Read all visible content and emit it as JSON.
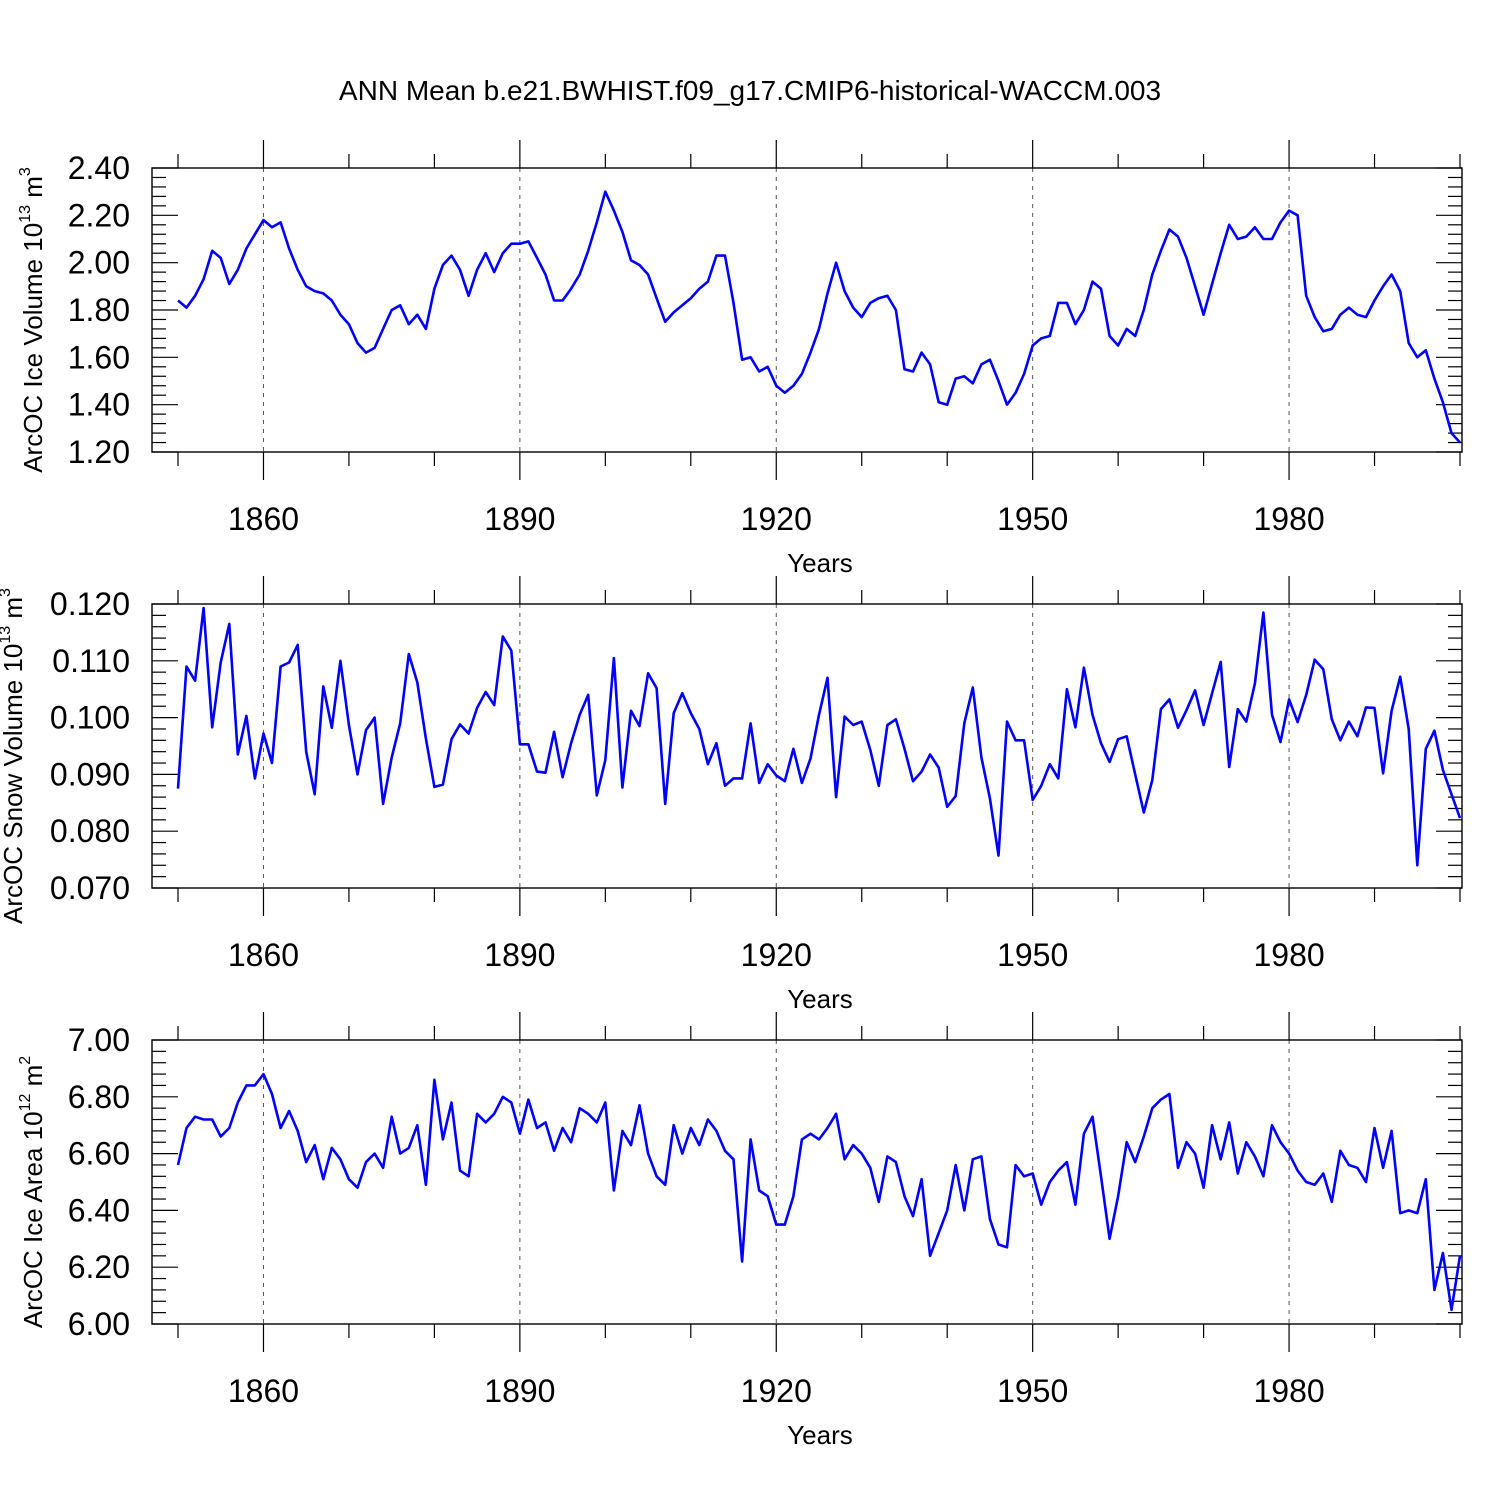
{
  "title": "ANN Mean b.e21.BWHIST.f09_g17.CMIP6-historical-WACCM.003",
  "colors": {
    "series": "#0000ff",
    "axis": "#000000"
  },
  "chart_data": [
    {
      "type": "line",
      "name": "ice-volume",
      "title": "ANN Mean b.e21.BWHIST.f09_g17.CMIP6-historical-WACCM.003",
      "ylabel": {
        "text": "ArcOC Ice Volume 10",
        "exp1": "13",
        "unit": " m",
        "exp2": "3"
      },
      "xlabel": "Years",
      "xlim": [
        1850,
        2000
      ],
      "ylim": [
        1.2,
        2.4
      ],
      "x_ticks": [
        1860,
        1890,
        1920,
        1950,
        1980
      ],
      "x_tick_labels": [
        "1860",
        "1890",
        "1920",
        "1950",
        "1980"
      ],
      "y_ticks": [
        1.2,
        1.4,
        1.6,
        1.8,
        2.0,
        2.2,
        2.4
      ],
      "y_tick_labels": [
        "1.20",
        "1.40",
        "1.60",
        "1.80",
        "2.00",
        "2.20",
        "2.40"
      ],
      "x_start": 1850,
      "values": [
        1.84,
        1.81,
        1.86,
        1.93,
        2.05,
        2.02,
        1.91,
        1.97,
        2.06,
        2.12,
        2.18,
        2.15,
        2.17,
        2.06,
        1.97,
        1.9,
        1.88,
        1.87,
        1.84,
        1.78,
        1.74,
        1.66,
        1.62,
        1.64,
        1.72,
        1.8,
        1.82,
        1.74,
        1.78,
        1.72,
        1.89,
        1.99,
        2.03,
        1.97,
        1.86,
        1.97,
        2.04,
        1.96,
        2.04,
        2.08,
        2.08,
        2.09,
        2.02,
        1.95,
        1.84,
        1.84,
        1.89,
        1.95,
        2.05,
        2.17,
        2.3,
        2.22,
        2.13,
        2.01,
        1.99,
        1.95,
        1.85,
        1.75,
        1.79,
        1.82,
        1.85,
        1.89,
        1.92,
        2.03,
        2.03,
        1.83,
        1.59,
        1.6,
        1.54,
        1.56,
        1.48,
        1.45,
        1.48,
        1.53,
        1.62,
        1.72,
        1.87,
        2.0,
        1.88,
        1.81,
        1.77,
        1.83,
        1.85,
        1.86,
        1.8,
        1.55,
        1.54,
        1.62,
        1.57,
        1.41,
        1.4,
        1.51,
        1.52,
        1.49,
        1.57,
        1.59,
        1.5,
        1.4,
        1.45,
        1.53,
        1.65,
        1.68,
        1.69,
        1.83,
        1.83,
        1.74,
        1.8,
        1.92,
        1.89,
        1.69,
        1.65,
        1.72,
        1.69,
        1.8,
        1.95,
        2.05,
        2.14,
        2.11,
        2.02,
        1.9,
        1.78,
        1.91,
        2.04,
        2.16,
        2.1,
        2.11,
        2.15,
        2.1,
        2.1,
        2.17,
        2.22,
        2.2,
        1.86,
        1.77,
        1.71,
        1.72,
        1.78,
        1.81,
        1.78,
        1.77,
        1.84,
        1.9,
        1.95,
        1.88,
        1.66,
        1.6,
        1.63,
        1.51,
        1.41,
        1.28,
        1.24
      ]
    },
    {
      "type": "line",
      "name": "snow-volume",
      "ylabel": {
        "text": "ArcOC Snow Volume 10",
        "exp1": "13",
        "unit": " m",
        "exp2": "3"
      },
      "xlabel": "Years",
      "xlim": [
        1850,
        2000
      ],
      "ylim": [
        0.07,
        0.12
      ],
      "x_ticks": [
        1860,
        1890,
        1920,
        1950,
        1980
      ],
      "x_tick_labels": [
        "1860",
        "1890",
        "1920",
        "1950",
        "1980"
      ],
      "y_ticks": [
        0.07,
        0.08,
        0.09,
        0.1,
        0.11,
        0.12
      ],
      "y_tick_labels": [
        "0.070",
        "0.080",
        "0.090",
        "0.100",
        "0.110",
        "0.120"
      ],
      "x_start": 1850,
      "values": [
        0.0875,
        0.109,
        0.1065,
        0.1193,
        0.0983,
        0.1097,
        0.1165,
        0.0935,
        0.1003,
        0.0893,
        0.0972,
        0.092,
        0.109,
        0.1097,
        0.1128,
        0.094,
        0.0865,
        0.1055,
        0.0982,
        0.11,
        0.0987,
        0.09,
        0.0978,
        0.1,
        0.0848,
        0.093,
        0.099,
        0.1112,
        0.1062,
        0.0963,
        0.0878,
        0.0882,
        0.0962,
        0.0988,
        0.0972,
        0.1017,
        0.1045,
        0.1022,
        0.1143,
        0.1118,
        0.0953,
        0.0953,
        0.0905,
        0.0903,
        0.0975,
        0.0895,
        0.0955,
        0.1005,
        0.104,
        0.0863,
        0.0925,
        0.1105,
        0.0877,
        0.1012,
        0.0985,
        0.1078,
        0.1052,
        0.0848,
        0.1008,
        0.1043,
        0.1008,
        0.098,
        0.0918,
        0.0955,
        0.088,
        0.0893,
        0.0893,
        0.099,
        0.0885,
        0.0918,
        0.0898,
        0.0888,
        0.0945,
        0.0885,
        0.0928,
        0.1005,
        0.107,
        0.086,
        0.1002,
        0.0987,
        0.0993,
        0.0943,
        0.088,
        0.0987,
        0.0997,
        0.0945,
        0.0888,
        0.0905,
        0.0935,
        0.0912,
        0.0843,
        0.0862,
        0.099,
        0.1053,
        0.093,
        0.0858,
        0.0757,
        0.0993,
        0.096,
        0.096,
        0.0855,
        0.088,
        0.0918,
        0.0893,
        0.105,
        0.0983,
        0.1088,
        0.1005,
        0.0955,
        0.0922,
        0.0962,
        0.0967,
        0.09,
        0.0833,
        0.089,
        0.1015,
        0.1032,
        0.0982,
        0.1013,
        0.1048,
        0.0987,
        0.1043,
        0.1098,
        0.0913,
        0.1015,
        0.0993,
        0.106,
        0.1185,
        0.1005,
        0.0957,
        0.1032,
        0.0992,
        0.104,
        0.1102,
        0.1085,
        0.0997,
        0.096,
        0.0993,
        0.0967,
        0.1018,
        0.1017,
        0.0902,
        0.1012,
        0.1072,
        0.098,
        0.074,
        0.0945,
        0.0977,
        0.0908,
        0.0865,
        0.0823
      ]
    },
    {
      "type": "line",
      "name": "ice-area",
      "ylabel": {
        "text": "ArcOC Ice Area 10",
        "exp1": "12",
        "unit": " m",
        "exp2": "2"
      },
      "xlabel": "Years",
      "xlim": [
        1850,
        2000
      ],
      "ylim": [
        6.0,
        7.0
      ],
      "x_ticks": [
        1860,
        1890,
        1920,
        1950,
        1980
      ],
      "x_tick_labels": [
        "1860",
        "1890",
        "1920",
        "1950",
        "1980"
      ],
      "y_ticks": [
        6.0,
        6.2,
        6.4,
        6.6,
        6.8,
        7.0
      ],
      "y_tick_labels": [
        "6.00",
        "6.20",
        "6.40",
        "6.60",
        "6.80",
        "7.00"
      ],
      "x_start": 1850,
      "values": [
        6.56,
        6.69,
        6.73,
        6.72,
        6.72,
        6.66,
        6.69,
        6.78,
        6.84,
        6.84,
        6.88,
        6.81,
        6.69,
        6.75,
        6.68,
        6.57,
        6.63,
        6.51,
        6.62,
        6.58,
        6.51,
        6.48,
        6.57,
        6.6,
        6.55,
        6.73,
        6.6,
        6.62,
        6.7,
        6.49,
        6.86,
        6.65,
        6.78,
        6.54,
        6.52,
        6.74,
        6.71,
        6.74,
        6.8,
        6.78,
        6.67,
        6.79,
        6.69,
        6.71,
        6.61,
        6.69,
        6.64,
        6.76,
        6.74,
        6.71,
        6.78,
        6.47,
        6.68,
        6.63,
        6.77,
        6.6,
        6.52,
        6.49,
        6.7,
        6.6,
        6.69,
        6.63,
        6.72,
        6.68,
        6.61,
        6.58,
        6.22,
        6.65,
        6.47,
        6.45,
        6.35,
        6.35,
        6.45,
        6.65,
        6.67,
        6.65,
        6.69,
        6.74,
        6.58,
        6.63,
        6.6,
        6.55,
        6.43,
        6.59,
        6.57,
        6.45,
        6.38,
        6.51,
        6.24,
        6.32,
        6.4,
        6.56,
        6.4,
        6.58,
        6.59,
        6.37,
        6.28,
        6.27,
        6.56,
        6.52,
        6.53,
        6.42,
        6.5,
        6.54,
        6.57,
        6.42,
        6.67,
        6.73,
        6.52,
        6.3,
        6.45,
        6.64,
        6.57,
        6.66,
        6.76,
        6.79,
        6.81,
        6.55,
        6.64,
        6.6,
        6.48,
        6.7,
        6.58,
        6.71,
        6.53,
        6.64,
        6.59,
        6.52,
        6.7,
        6.64,
        6.6,
        6.54,
        6.5,
        6.49,
        6.53,
        6.43,
        6.61,
        6.56,
        6.55,
        6.5,
        6.69,
        6.55,
        6.68,
        6.39,
        6.4,
        6.39,
        6.51,
        6.12,
        6.25,
        6.05,
        6.24
      ]
    }
  ]
}
